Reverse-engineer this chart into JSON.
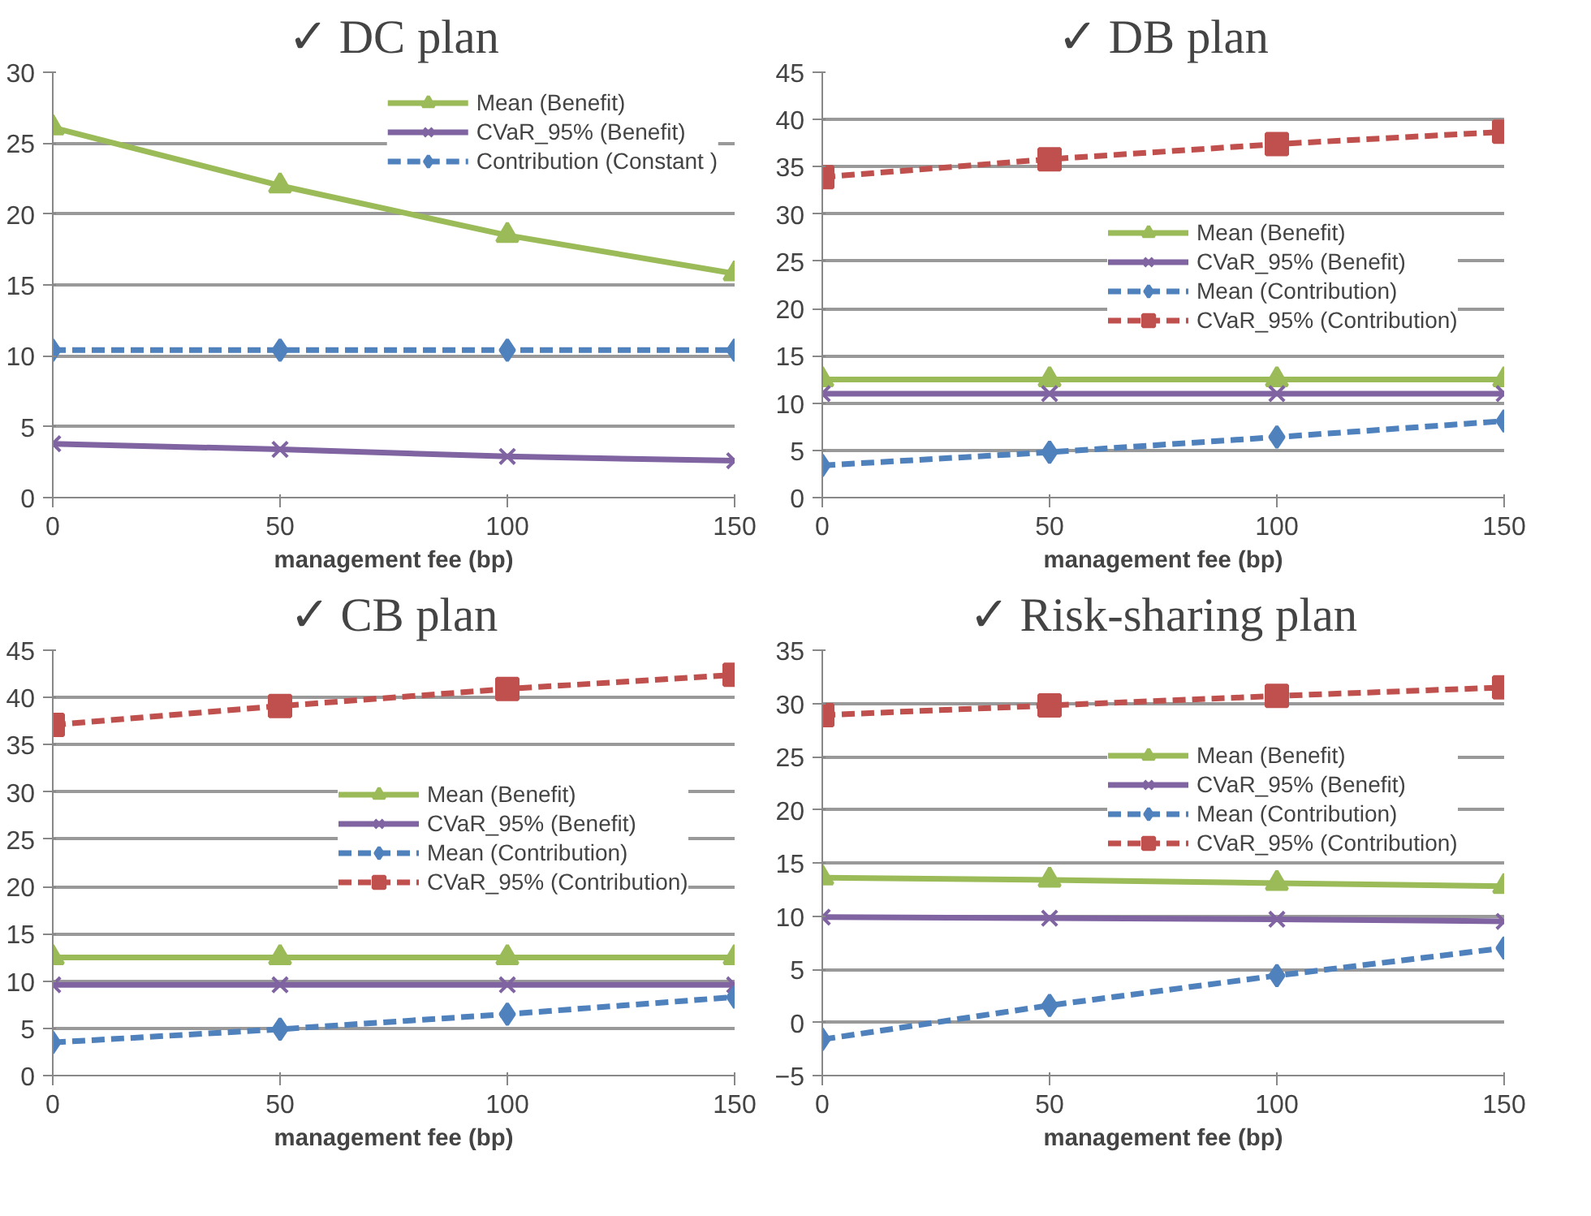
{
  "chart_data": [
    {
      "type": "line",
      "title": "✓ DC plan",
      "xlabel": "management fee (bp)",
      "x": [
        0,
        50,
        100,
        150
      ],
      "xlim": [
        0,
        150
      ],
      "xticks": [
        0,
        50,
        100,
        150
      ],
      "ylim": [
        0,
        30
      ],
      "yticks": [
        0,
        5,
        10,
        15,
        20,
        25,
        30
      ],
      "grid": "y",
      "legend": "top right",
      "series": [
        {
          "name": "Mean (Benefit)",
          "color": "#9bbb59",
          "marker": "triangle",
          "line_style": "solid",
          "values": [
            26.1,
            22.0,
            18.5,
            15.8
          ]
        },
        {
          "name": "CVaR_95% (Benefit)",
          "color": "#8064a2",
          "marker": "cross",
          "line_style": "solid",
          "values": [
            3.8,
            3.4,
            2.9,
            2.6
          ]
        },
        {
          "name": "Contribution (Constant )",
          "color": "#4f81bd",
          "marker": "diamond",
          "line_style": "dashed",
          "values": [
            10.4,
            10.4,
            10.4,
            10.4
          ]
        }
      ]
    },
    {
      "type": "line",
      "title": "✓ DB plan",
      "xlabel": "management fee (bp)",
      "x": [
        0,
        50,
        100,
        150
      ],
      "xlim": [
        0,
        150
      ],
      "xticks": [
        0,
        50,
        100,
        150
      ],
      "ylim": [
        0,
        45
      ],
      "yticks": [
        0,
        5,
        10,
        15,
        20,
        25,
        30,
        35,
        40,
        45
      ],
      "grid": "y",
      "legend": "right",
      "series": [
        {
          "name": "Mean (Benefit)",
          "color": "#9bbb59",
          "marker": "triangle",
          "line_style": "solid",
          "values": [
            12.5,
            12.5,
            12.5,
            12.5
          ]
        },
        {
          "name": "CVaR_95% (Benefit)",
          "color": "#8064a2",
          "marker": "cross",
          "line_style": "solid",
          "values": [
            11.0,
            11.0,
            11.0,
            11.0
          ]
        },
        {
          "name": "Mean (Contribution)",
          "color": "#4f81bd",
          "marker": "diamond",
          "line_style": "dashed",
          "values": [
            3.4,
            4.8,
            6.4,
            8.1
          ]
        },
        {
          "name": "CVaR_95% (Contribution)",
          "color": "#c0504d",
          "marker": "square",
          "line_style": "dashed",
          "values": [
            33.9,
            35.8,
            37.4,
            38.7
          ]
        }
      ]
    },
    {
      "type": "line",
      "title": "✓ CB plan",
      "xlabel": "management fee (bp)",
      "x": [
        0,
        50,
        100,
        150
      ],
      "xlim": [
        0,
        150
      ],
      "xticks": [
        0,
        50,
        100,
        150
      ],
      "ylim": [
        0,
        45
      ],
      "yticks": [
        0,
        5,
        10,
        15,
        20,
        25,
        30,
        35,
        40,
        45
      ],
      "grid": "y",
      "legend": "right",
      "series": [
        {
          "name": "Mean (Benefit)",
          "color": "#9bbb59",
          "marker": "triangle",
          "line_style": "solid",
          "values": [
            12.5,
            12.5,
            12.5,
            12.5
          ]
        },
        {
          "name": "CVaR_95% (Benefit)",
          "color": "#8064a2",
          "marker": "cross",
          "line_style": "solid",
          "values": [
            9.6,
            9.6,
            9.6,
            9.6
          ]
        },
        {
          "name": "Mean (Contribution)",
          "color": "#4f81bd",
          "marker": "diamond",
          "line_style": "dashed",
          "values": [
            3.5,
            4.9,
            6.5,
            8.3
          ]
        },
        {
          "name": "CVaR_95% (Contribution)",
          "color": "#c0504d",
          "marker": "square",
          "line_style": "dashed",
          "values": [
            37.1,
            39.1,
            40.9,
            42.4
          ]
        }
      ]
    },
    {
      "type": "line",
      "title": "✓ Risk-sharing plan",
      "xlabel": "management fee (bp)",
      "x": [
        0,
        50,
        100,
        150
      ],
      "xlim": [
        0,
        150
      ],
      "xticks": [
        0,
        50,
        100,
        150
      ],
      "ylim": [
        -5,
        35
      ],
      "yticks": [
        -5,
        0,
        5,
        10,
        15,
        20,
        25,
        30,
        35
      ],
      "grid": "y",
      "legend": "right",
      "series": [
        {
          "name": "Mean (Benefit)",
          "color": "#9bbb59",
          "marker": "triangle",
          "line_style": "solid",
          "values": [
            13.6,
            13.4,
            13.1,
            12.8
          ]
        },
        {
          "name": "CVaR_95% (Benefit)",
          "color": "#8064a2",
          "marker": "cross",
          "line_style": "solid",
          "values": [
            9.9,
            9.8,
            9.7,
            9.5
          ]
        },
        {
          "name": "Mean (Contribution)",
          "color": "#4f81bd",
          "marker": "diamond",
          "line_style": "dashed",
          "values": [
            -1.6,
            1.6,
            4.4,
            7.0
          ]
        },
        {
          "name": "CVaR_95% (Contribution)",
          "color": "#c0504d",
          "marker": "square",
          "line_style": "dashed",
          "values": [
            28.9,
            29.8,
            30.7,
            31.5
          ]
        }
      ]
    }
  ]
}
